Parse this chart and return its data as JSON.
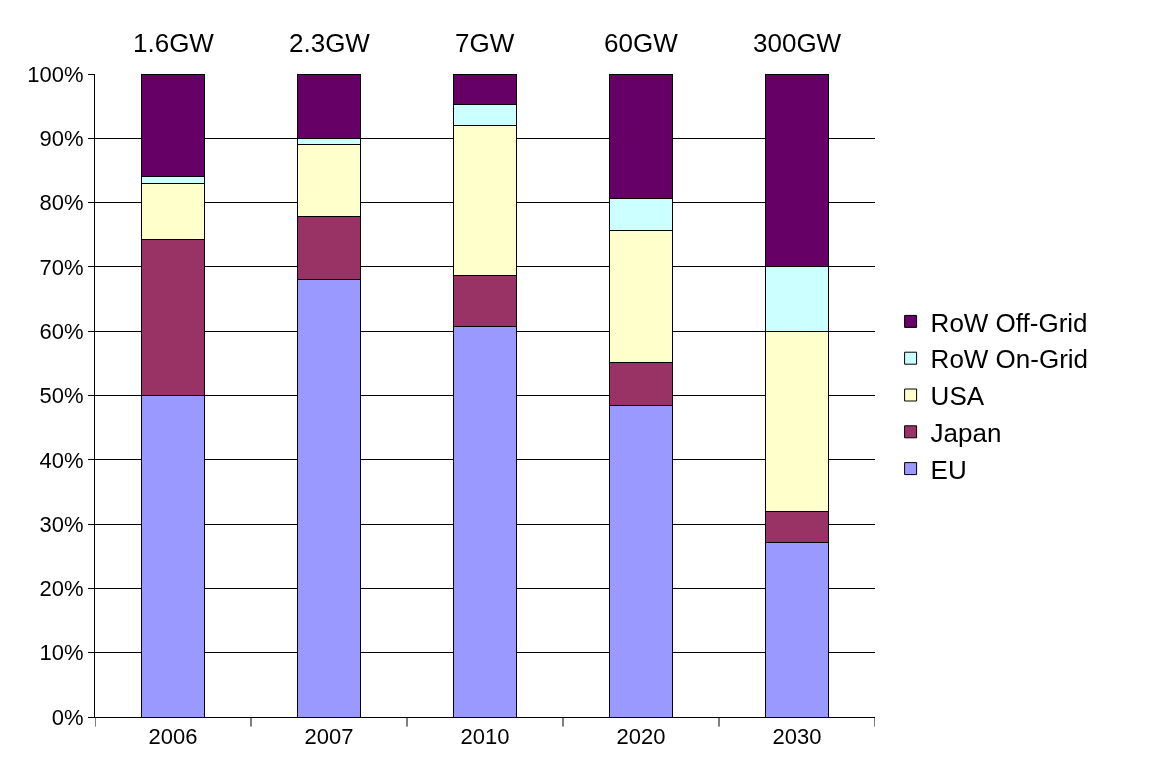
{
  "chart_data": {
    "type": "bar",
    "stacked": true,
    "categories": [
      "2006",
      "2007",
      "2010",
      "2020",
      "2030"
    ],
    "series": [
      {
        "name": "EU",
        "color": "#9999ff",
        "values": [
          50,
          68.1,
          60.7,
          48.5,
          27.2
        ]
      },
      {
        "name": "Japan",
        "color": "#993366",
        "values": [
          24.2,
          9.8,
          7.9,
          6.7,
          4.8
        ]
      },
      {
        "name": "USA",
        "color": "#ffffcc",
        "values": [
          8.8,
          11.2,
          23.4,
          20.4,
          28
        ]
      },
      {
        "name": "RoW On-Grid",
        "color": "#ccffff",
        "values": [
          1,
          0.9,
          3.2,
          5.1,
          10
        ]
      },
      {
        "name": "RoW Off-Grid",
        "color": "#660066",
        "values": [
          16,
          10,
          4.8,
          19.3,
          30
        ]
      }
    ],
    "ylim": [
      0,
      100
    ],
    "yticks": [
      {
        "value": 0,
        "label": "0%"
      },
      {
        "value": 10,
        "label": "10%"
      },
      {
        "value": 20,
        "label": "20%"
      },
      {
        "value": 30,
        "label": "30%"
      },
      {
        "value": 40,
        "label": "40%"
      },
      {
        "value": 50,
        "label": "50%"
      },
      {
        "value": 60,
        "label": "60%"
      },
      {
        "value": 70,
        "label": "70%"
      },
      {
        "value": 80,
        "label": "80%"
      },
      {
        "value": 90,
        "label": "90%"
      },
      {
        "value": 100,
        "label": "100%"
      }
    ],
    "grid": "y",
    "legend": "right",
    "annotations": [
      {
        "text": "1.6GW",
        "x": "2006",
        "y": 100
      },
      {
        "text": "2.3GW",
        "x": "2007",
        "y": 100
      },
      {
        "text": "7GW",
        "x": "2010",
        "y": 100
      },
      {
        "text": "60GW",
        "x": "2020",
        "y": 100
      },
      {
        "text": "300GW",
        "x": "2030",
        "y": 100
      }
    ]
  }
}
